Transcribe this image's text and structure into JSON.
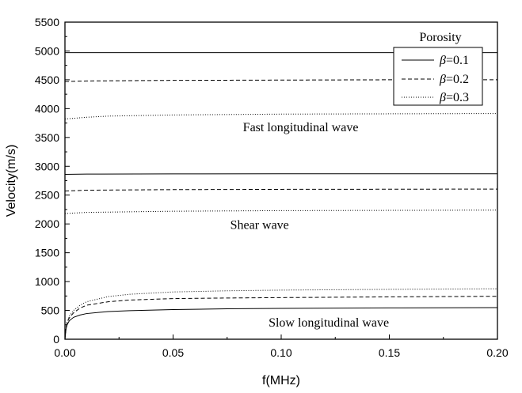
{
  "chart_data": {
    "type": "line",
    "xlabel": "f(MHz)",
    "ylabel": "Velocity(m/s)",
    "xlim": [
      0,
      0.2
    ],
    "ylim": [
      0,
      5500
    ],
    "x_ticks": [
      "0.00",
      "0.05",
      "0.10",
      "0.15",
      "0.20"
    ],
    "y_ticks": [
      "0",
      "500",
      "1000",
      "1500",
      "2000",
      "2500",
      "3000",
      "3500",
      "4000",
      "4500",
      "5000",
      "5500"
    ],
    "legend": {
      "title": "Porosity",
      "position": "top-right",
      "entries": [
        {
          "prefix": "β",
          "label": "=0.1",
          "style": "solid"
        },
        {
          "prefix": "β",
          "label": "=0.2",
          "style": "dashed"
        },
        {
          "prefix": "β",
          "label": "=0.3",
          "style": "dotted"
        }
      ]
    },
    "annotations": [
      {
        "text": "Fast longitudinal wave",
        "x": 0.109,
        "y": 3610
      },
      {
        "text": "Shear wave",
        "x": 0.09,
        "y": 1910
      },
      {
        "text": "Slow longitudinal wave",
        "x": 0.122,
        "y": 220
      }
    ],
    "series": [
      {
        "name": "Fast longitudinal wave, β=0.1",
        "style": "solid",
        "x": [
          0.0,
          0.01,
          0.05,
          0.1,
          0.15,
          0.2
        ],
        "y": [
          4970,
          4970,
          4970,
          4970,
          4970,
          4970
        ]
      },
      {
        "name": "Fast longitudinal wave, β=0.2",
        "style": "dashed",
        "x": [
          0.0,
          0.01,
          0.05,
          0.1,
          0.15,
          0.2
        ],
        "y": [
          4470,
          4480,
          4490,
          4495,
          4500,
          4500
        ]
      },
      {
        "name": "Fast longitudinal wave, β=0.3",
        "style": "dotted",
        "x": [
          0.0,
          0.01,
          0.02,
          0.05,
          0.1,
          0.15,
          0.2
        ],
        "y": [
          3820,
          3850,
          3870,
          3890,
          3905,
          3910,
          3915
        ]
      },
      {
        "name": "Shear wave, β=0.1",
        "style": "solid",
        "x": [
          0.0,
          0.01,
          0.05,
          0.1,
          0.15,
          0.2
        ],
        "y": [
          2860,
          2865,
          2868,
          2870,
          2870,
          2870
        ]
      },
      {
        "name": "Shear wave, β=0.2",
        "style": "dashed",
        "x": [
          0.0,
          0.01,
          0.05,
          0.1,
          0.15,
          0.2
        ],
        "y": [
          2570,
          2585,
          2595,
          2600,
          2602,
          2605
        ]
      },
      {
        "name": "Shear wave, β=0.3",
        "style": "dotted",
        "x": [
          0.0,
          0.01,
          0.05,
          0.1,
          0.15,
          0.2
        ],
        "y": [
          2180,
          2200,
          2220,
          2230,
          2235,
          2240
        ]
      },
      {
        "name": "Slow longitudinal wave, β=0.1",
        "style": "solid",
        "x": [
          0.0,
          0.0005,
          0.001,
          0.002,
          0.004,
          0.007,
          0.01,
          0.02,
          0.03,
          0.05,
          0.075,
          0.1,
          0.15,
          0.2
        ],
        "y": [
          0,
          180,
          250,
          320,
          380,
          420,
          445,
          480,
          495,
          515,
          528,
          535,
          543,
          548
        ]
      },
      {
        "name": "Slow longitudinal wave, β=0.2",
        "style": "dashed",
        "x": [
          0.0,
          0.0005,
          0.001,
          0.002,
          0.004,
          0.007,
          0.01,
          0.02,
          0.03,
          0.05,
          0.075,
          0.1,
          0.15,
          0.2
        ],
        "y": [
          0,
          200,
          280,
          370,
          460,
          540,
          590,
          650,
          680,
          705,
          715,
          722,
          735,
          745
        ]
      },
      {
        "name": "Slow longitudinal wave, β=0.3",
        "style": "dotted",
        "x": [
          0.0,
          0.0005,
          0.001,
          0.002,
          0.004,
          0.007,
          0.01,
          0.02,
          0.03,
          0.05,
          0.075,
          0.1,
          0.15,
          0.2
        ],
        "y": [
          0,
          210,
          300,
          400,
          500,
          590,
          650,
          740,
          780,
          820,
          840,
          852,
          865,
          875
        ]
      }
    ]
  }
}
